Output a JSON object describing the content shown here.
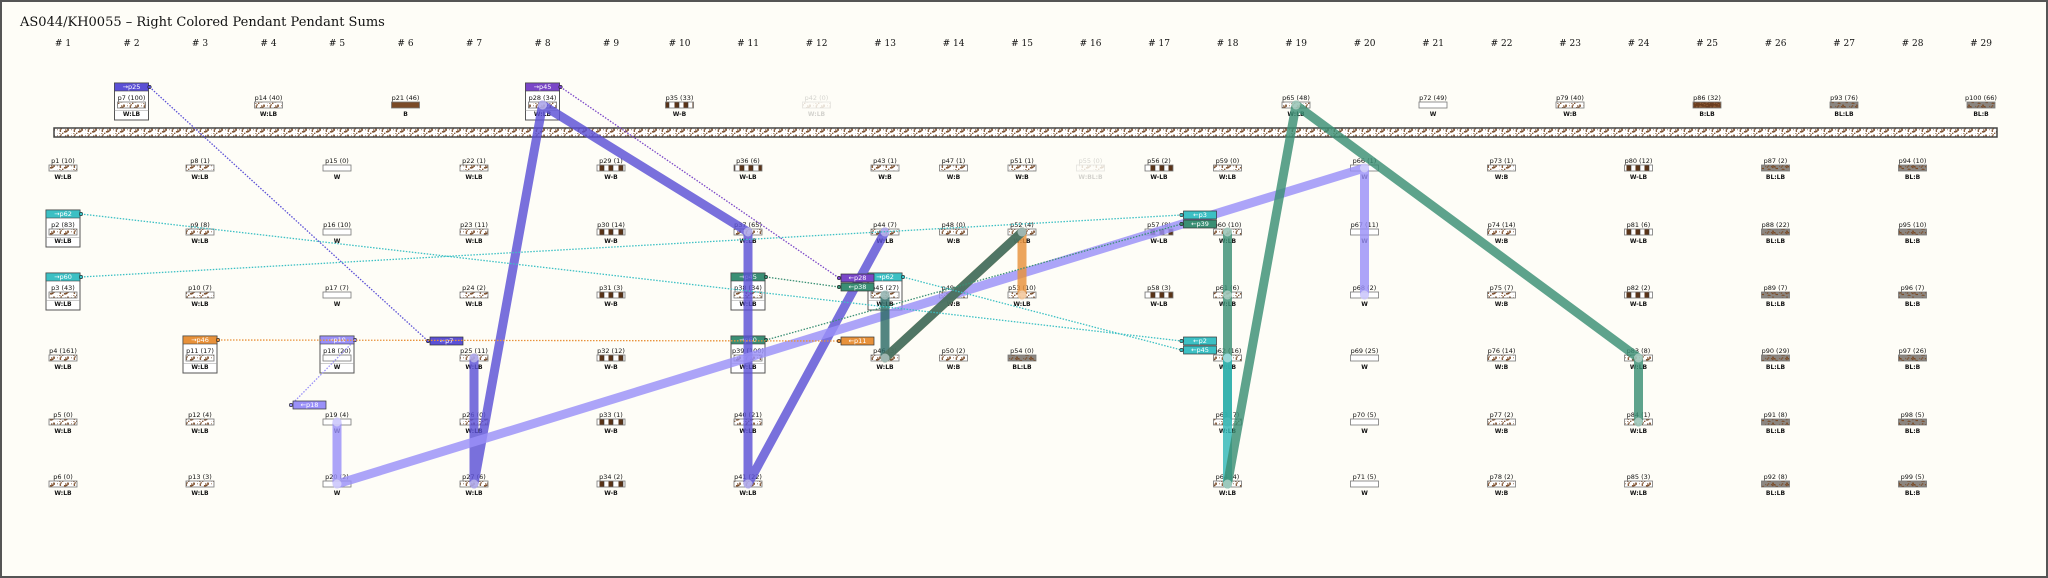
{
  "title": "AS044/KH0055 – Right Colored Pendant Pendant Sums",
  "columns": [
    "# 1",
    "# 2",
    "# 3",
    "# 4",
    "# 5",
    "# 6",
    "# 7",
    "# 8",
    "# 9",
    "# 10",
    "# 11",
    "# 12",
    "# 13",
    "# 14",
    "# 15",
    "# 16",
    "# 17",
    "# 18",
    "# 19",
    "# 20",
    "# 21",
    "# 22",
    "# 23",
    "# 24",
    "# 25",
    "# 26",
    "# 27",
    "# 28",
    "# 29"
  ],
  "colors": {
    "background": "#fefdf7",
    "brown": "#7a4a26",
    "blue": "#5b50d6",
    "purple": "#7a46c8",
    "lavender": "#9a90f8",
    "teal": "#3cc0c4",
    "green": "#3a8f74",
    "dark_teal": "#2d6b66",
    "orange": "#e8913a"
  },
  "pendants": [
    {
      "id": "p1",
      "label": "p1 (10)",
      "code": "W:LB",
      "col": 1,
      "row": 1
    },
    {
      "id": "p2",
      "label": "p2 (83)",
      "code": "W:LB",
      "col": 1,
      "row": 2,
      "out": {
        "text": "→p62",
        "color": "#3cc0c4",
        "to": "p62"
      }
    },
    {
      "id": "p3",
      "label": "p3 (43)",
      "code": "W:LB",
      "col": 1,
      "row": 3,
      "out": {
        "text": "→p60",
        "color": "#3cc0c4",
        "to": "p60"
      }
    },
    {
      "id": "p4",
      "label": "p4 (161)",
      "code": "W:LB",
      "col": 1,
      "row": 4
    },
    {
      "id": "p5",
      "label": "p5 (0)",
      "code": "W:LB",
      "col": 1,
      "row": 5
    },
    {
      "id": "p6",
      "label": "p6 (0)",
      "code": "W:LB",
      "col": 1,
      "row": 6
    },
    {
      "id": "p7",
      "label": "p7 (100)",
      "code": "W:LB",
      "col": 2,
      "row": 0,
      "out": {
        "text": "→p25",
        "color": "#5b50d6",
        "to": "p25"
      }
    },
    {
      "id": "p8",
      "label": "p8 (1)",
      "code": "W:LB",
      "col": 3,
      "row": 1
    },
    {
      "id": "p9",
      "label": "p9 (8)",
      "code": "W:LB",
      "col": 3,
      "row": 2
    },
    {
      "id": "p10",
      "label": "p10 (7)",
      "code": "W:LB",
      "col": 3,
      "row": 3
    },
    {
      "id": "p11",
      "label": "p11 (17)",
      "code": "W:LB",
      "col": 3,
      "row": 4,
      "out": {
        "text": "→p46",
        "color": "#e8913a",
        "to": "p46"
      }
    },
    {
      "id": "p12",
      "label": "p12 (4)",
      "code": "W:LB",
      "col": 3,
      "row": 5
    },
    {
      "id": "p13",
      "label": "p13 (3)",
      "code": "W:LB",
      "col": 3,
      "row": 6
    },
    {
      "id": "p14",
      "label": "p14 (40)",
      "code": "W:LB",
      "col": 4,
      "row": 0
    },
    {
      "id": "p15",
      "label": "p15 (0)",
      "code": "W",
      "col": 5,
      "row": 1
    },
    {
      "id": "p16",
      "label": "p16 (10)",
      "code": "W",
      "col": 5,
      "row": 2
    },
    {
      "id": "p17",
      "label": "p17 (7)",
      "code": "W",
      "col": 5,
      "row": 3
    },
    {
      "id": "p18",
      "label": "p18 (20)",
      "code": "W",
      "col": 5,
      "row": 4,
      "out": {
        "text": "→p19",
        "color": "#9a90f8",
        "to": "p19"
      }
    },
    {
      "id": "p19",
      "label": "p19 (4)",
      "code": "W",
      "col": 5,
      "row": 5
    },
    {
      "id": "p20",
      "label": "p20 (2)",
      "code": "W",
      "col": 5,
      "row": 6
    },
    {
      "id": "p21",
      "label": "p21 (46)",
      "code": "B",
      "col": 6,
      "row": 0
    },
    {
      "id": "p22",
      "label": "p22 (1)",
      "code": "W:LB",
      "col": 7,
      "row": 1
    },
    {
      "id": "p23",
      "label": "p23 (11)",
      "code": "W:LB",
      "col": 7,
      "row": 2
    },
    {
      "id": "p24",
      "label": "p24 (2)",
      "code": "W:LB",
      "col": 7,
      "row": 3
    },
    {
      "id": "p25",
      "label": "p25 (11)",
      "code": "W:LB",
      "col": 7,
      "row": 4
    },
    {
      "id": "p26",
      "label": "p26 (0)",
      "code": "W:LB",
      "col": 7,
      "row": 5
    },
    {
      "id": "p27",
      "label": "p27 (6)",
      "code": "W:LB",
      "col": 7,
      "row": 6
    },
    {
      "id": "p28",
      "label": "p28 (34)",
      "code": "W:LB",
      "col": 8,
      "row": 0,
      "out": {
        "text": "→p45",
        "color": "#7a46c8",
        "to": "p45"
      }
    },
    {
      "id": "p29",
      "label": "p29 (1)",
      "code": "W-B",
      "col": 9,
      "row": 1
    },
    {
      "id": "p30",
      "label": "p30 (14)",
      "code": "W-B",
      "col": 9,
      "row": 2
    },
    {
      "id": "p31",
      "label": "p31 (3)",
      "code": "W-B",
      "col": 9,
      "row": 3
    },
    {
      "id": "p32",
      "label": "p32 (12)",
      "code": "W-B",
      "col": 9,
      "row": 4
    },
    {
      "id": "p33",
      "label": "p33 (1)",
      "code": "W-B",
      "col": 9,
      "row": 5
    },
    {
      "id": "p34",
      "label": "p34 (2)",
      "code": "W-B",
      "col": 9,
      "row": 6
    },
    {
      "id": "p35",
      "label": "p35 (33)",
      "code": "W-B",
      "col": 10,
      "row": 0
    },
    {
      "id": "p36",
      "label": "p36 (6)",
      "code": "W-LB",
      "col": 11,
      "row": 1
    },
    {
      "id": "p37",
      "label": "p37 (65)",
      "code": "W:LB",
      "col": 11,
      "row": 2
    },
    {
      "id": "p38",
      "label": "p38 (34)",
      "code": "W:LB",
      "col": 11,
      "row": 3,
      "out": {
        "text": "→p45",
        "color": "#3a8f74",
        "to": "p45"
      }
    },
    {
      "id": "p39",
      "label": "p39 (100)",
      "code": "W:LB",
      "col": 11,
      "row": 4,
      "out": {
        "text": "→p60",
        "color": "#3a8f74",
        "to": "p60"
      }
    },
    {
      "id": "p40",
      "label": "p40 (21)",
      "code": "W:LB",
      "col": 11,
      "row": 5
    },
    {
      "id": "p41",
      "label": "p41 (22)",
      "code": "W:LB",
      "col": 11,
      "row": 6
    },
    {
      "id": "p42",
      "label": "p42 (0)",
      "code": "W:LB",
      "col": 12,
      "row": 0,
      "faded": true
    },
    {
      "id": "p43",
      "label": "p43 (1)",
      "code": "W:B",
      "col": 13,
      "row": 1
    },
    {
      "id": "p44",
      "label": "p44 (7)",
      "code": "W:LB",
      "col": 13,
      "row": 2
    },
    {
      "id": "p45",
      "label": "p45 (27)",
      "code": "W:LB",
      "col": 13,
      "row": 3,
      "out": {
        "text": "→p62",
        "color": "#3cc0c4",
        "to": "p62"
      }
    },
    {
      "id": "p46",
      "label": "p46 (3)",
      "code": "W:LB",
      "col": 13,
      "row": 4
    },
    {
      "id": "p47",
      "label": "p47 (1)",
      "code": "W:B",
      "col": 14,
      "row": 1
    },
    {
      "id": "p48",
      "label": "p48 (0)",
      "code": "W:B",
      "col": 14,
      "row": 2
    },
    {
      "id": "p49",
      "label": "p49 (0)",
      "code": "W:B",
      "col": 14,
      "row": 3
    },
    {
      "id": "p50",
      "label": "p50 (2)",
      "code": "W:B",
      "col": 14,
      "row": 4
    },
    {
      "id": "p51",
      "label": "p51 (1)",
      "code": "W:B",
      "col": 15,
      "row": 1
    },
    {
      "id": "p52",
      "label": "p52 (4)",
      "code": "W:LB",
      "col": 15,
      "row": 2
    },
    {
      "id": "p53",
      "label": "p53 (10)",
      "code": "W:LB",
      "col": 15,
      "row": 3
    },
    {
      "id": "p54",
      "label": "p54 (0)",
      "code": "BL:LB",
      "col": 15,
      "row": 4
    },
    {
      "id": "p55",
      "label": "p55 (0)",
      "code": "W:BL:B",
      "col": 16,
      "row": 1,
      "faded": true
    },
    {
      "id": "p56",
      "label": "p56 (2)",
      "code": "W-LB",
      "col": 17,
      "row": 1
    },
    {
      "id": "p57",
      "label": "p57 (8)",
      "code": "W-LB",
      "col": 17,
      "row": 2
    },
    {
      "id": "p58",
      "label": "p58 (3)",
      "code": "W-LB",
      "col": 17,
      "row": 3
    },
    {
      "id": "p59",
      "label": "p59 (0)",
      "code": "W:LB",
      "col": 18,
      "row": 1
    },
    {
      "id": "p60",
      "label": "p60 (10)",
      "code": "W:LB",
      "col": 18,
      "row": 2
    },
    {
      "id": "p61",
      "label": "p61 (6)",
      "code": "W:LB",
      "col": 18,
      "row": 3
    },
    {
      "id": "p62",
      "label": "p62 (16)",
      "code": "W:LB",
      "col": 18,
      "row": 4
    },
    {
      "id": "p63",
      "label": "p63 (7)",
      "code": "W:LB",
      "col": 18,
      "row": 5
    },
    {
      "id": "p64",
      "label": "p64 (4)",
      "code": "W:LB",
      "col": 18,
      "row": 6
    },
    {
      "id": "p65",
      "label": "p65 (48)",
      "code": "W:LB",
      "col": 19,
      "row": 0
    },
    {
      "id": "p66",
      "label": "p66 (1)",
      "code": "W",
      "col": 20,
      "row": 1
    },
    {
      "id": "p67",
      "label": "p67 (11)",
      "code": "W",
      "col": 20,
      "row": 2
    },
    {
      "id": "p68",
      "label": "p68 (2)",
      "code": "W",
      "col": 20,
      "row": 3
    },
    {
      "id": "p69",
      "label": "p69 (25)",
      "code": "W",
      "col": 20,
      "row": 4
    },
    {
      "id": "p70",
      "label": "p70 (5)",
      "code": "W",
      "col": 20,
      "row": 5
    },
    {
      "id": "p71",
      "label": "p71 (5)",
      "code": "W",
      "col": 20,
      "row": 6
    },
    {
      "id": "p72",
      "label": "p72 (49)",
      "code": "W",
      "col": 21,
      "row": 0
    },
    {
      "id": "p73",
      "label": "p73 (1)",
      "code": "W:B",
      "col": 22,
      "row": 1
    },
    {
      "id": "p74",
      "label": "p74 (14)",
      "code": "W:B",
      "col": 22,
      "row": 2
    },
    {
      "id": "p75",
      "label": "p75 (7)",
      "code": "W:B",
      "col": 22,
      "row": 3
    },
    {
      "id": "p76",
      "label": "p76 (14)",
      "code": "W:B",
      "col": 22,
      "row": 4
    },
    {
      "id": "p77",
      "label": "p77 (2)",
      "code": "W:B",
      "col": 22,
      "row": 5
    },
    {
      "id": "p78",
      "label": "p78 (2)",
      "code": "W:B",
      "col": 22,
      "row": 6
    },
    {
      "id": "p79",
      "label": "p79 (40)",
      "code": "W:B",
      "col": 23,
      "row": 0
    },
    {
      "id": "p80",
      "label": "p80 (12)",
      "code": "W-LB",
      "col": 24,
      "row": 1
    },
    {
      "id": "p81",
      "label": "p81 (6)",
      "code": "W-LB",
      "col": 24,
      "row": 2
    },
    {
      "id": "p82",
      "label": "p82 (2)",
      "code": "W-LB",
      "col": 24,
      "row": 3
    },
    {
      "id": "p83",
      "label": "p83 (8)",
      "code": "W:LB",
      "col": 24,
      "row": 4
    },
    {
      "id": "p84",
      "label": "p84 (1)",
      "code": "W:LB",
      "col": 24,
      "row": 5
    },
    {
      "id": "p85",
      "label": "p85 (3)",
      "code": "W:LB",
      "col": 24,
      "row": 6
    },
    {
      "id": "p86",
      "label": "p86 (32)",
      "code": "B:LB",
      "col": 25,
      "row": 0
    },
    {
      "id": "p87",
      "label": "p87 (2)",
      "code": "BL:LB",
      "col": 26,
      "row": 1
    },
    {
      "id": "p88",
      "label": "p88 (22)",
      "code": "BL:LB",
      "col": 26,
      "row": 2
    },
    {
      "id": "p89",
      "label": "p89 (7)",
      "code": "BL:LB",
      "col": 26,
      "row": 3
    },
    {
      "id": "p90",
      "label": "p90 (29)",
      "code": "BL:LB",
      "col": 26,
      "row": 4
    },
    {
      "id": "p91",
      "label": "p91 (8)",
      "code": "BL:LB",
      "col": 26,
      "row": 5
    },
    {
      "id": "p92",
      "label": "p92 (8)",
      "code": "BL:LB",
      "col": 26,
      "row": 6
    },
    {
      "id": "p93",
      "label": "p93 (76)",
      "code": "BL:LB",
      "col": 27,
      "row": 0
    },
    {
      "id": "p94",
      "label": "p94 (10)",
      "code": "BL:B",
      "col": 28,
      "row": 1
    },
    {
      "id": "p95",
      "label": "p95 (10)",
      "code": "BL:B",
      "col": 28,
      "row": 2
    },
    {
      "id": "p96",
      "label": "p96 (7)",
      "code": "BL:B",
      "col": 28,
      "row": 3
    },
    {
      "id": "p97",
      "label": "p97 (26)",
      "code": "BL:B",
      "col": 28,
      "row": 4
    },
    {
      "id": "p98",
      "label": "p98 (5)",
      "code": "BL:B",
      "col": 28,
      "row": 5
    },
    {
      "id": "p99",
      "label": "p99 (5)",
      "code": "BL:B",
      "col": 28,
      "row": 6
    },
    {
      "id": "p100",
      "label": "p100 (66)",
      "code": "BL:B",
      "col": 29,
      "row": 0
    }
  ],
  "incoming_tags": [
    {
      "target": "p25",
      "text": "←p7",
      "color": "#5b50d6",
      "from": "p7",
      "slot": 0
    },
    {
      "target": "p19",
      "text": "←p18",
      "color": "#9a90f8",
      "from": "p18",
      "slot": 0
    },
    {
      "target": "p45",
      "text": "←p28",
      "color": "#7a46c8",
      "from": "p28",
      "slot": 0
    },
    {
      "target": "p45",
      "text": "←p38",
      "color": "#3a8f74",
      "from": "p38",
      "slot": 1
    },
    {
      "target": "p46",
      "text": "←p11",
      "color": "#e8913a",
      "from": "p11",
      "slot": 0
    },
    {
      "target": "p60",
      "text": "←p3",
      "color": "#3cc0c4",
      "from": "p3",
      "slot": 0
    },
    {
      "target": "p60",
      "text": "←p39",
      "color": "#3a8f74",
      "from": "p39",
      "slot": 1
    },
    {
      "target": "p62",
      "text": "←p2",
      "color": "#3cc0c4",
      "from": "p2",
      "slot": 0
    },
    {
      "target": "p62",
      "text": "←p45",
      "color": "#3cc0c4",
      "from": "p45",
      "slot": 1
    }
  ],
  "sum_paths": [
    {
      "color": "#5b50d6",
      "nodes": [
        "p25",
        "p27",
        "p28",
        "p37",
        "p41",
        "p44"
      ]
    },
    {
      "color": "#9a90f8",
      "nodes": [
        "p19",
        "p20",
        "p66",
        "p68"
      ]
    },
    {
      "color": "#e8913a",
      "nodes": [
        "p46",
        "p52",
        "p53"
      ]
    },
    {
      "color": "#2d6b66",
      "nodes": [
        "p45",
        "p46",
        "p52"
      ]
    },
    {
      "color": "#3a8f74",
      "nodes": [
        "p60",
        "p61",
        "p62",
        "p63"
      ]
    },
    {
      "color": "#31b7b7",
      "nodes": [
        "p62",
        "p64"
      ]
    },
    {
      "color": "#3a8f74",
      "nodes": [
        "p64",
        "p65",
        "p83",
        "p84"
      ]
    }
  ]
}
